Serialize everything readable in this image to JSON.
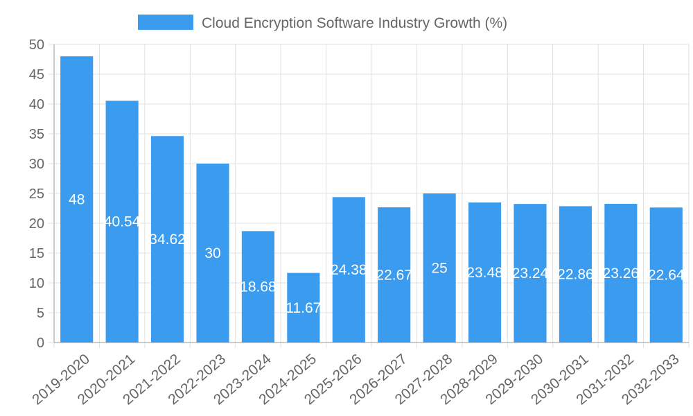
{
  "chart_data": {
    "type": "bar",
    "title": "",
    "xlabel": "",
    "ylabel": "",
    "legend": [
      {
        "name": "Cloud Encryption Software Industry Growth (%)",
        "color": "#3a9bef"
      }
    ],
    "legend_position": "top-center",
    "grid": true,
    "ylim": [
      0,
      50
    ],
    "yticks": [
      0,
      5,
      10,
      15,
      20,
      25,
      30,
      35,
      40,
      45,
      50
    ],
    "categories": [
      "2019-2020",
      "2020-2021",
      "2021-2022",
      "2022-2023",
      "2023-2024",
      "2024-2025",
      "2025-2026",
      "2026-2027",
      "2027-2028",
      "2028-2029",
      "2029-2030",
      "2030-2031",
      "2031-2032",
      "2032-2033"
    ],
    "series": [
      {
        "name": "Cloud Encryption Software Industry Growth (%)",
        "values": [
          48,
          40.54,
          34.62,
          30,
          18.68,
          11.67,
          24.38,
          22.67,
          25,
          23.48,
          23.24,
          22.86,
          23.26,
          22.64
        ],
        "labels": [
          "48",
          "40.54",
          "34.62",
          "30",
          "18.68",
          "11.67",
          "24.38",
          "22.67",
          "25",
          "23.48",
          "23.24",
          "22.86",
          "23.26",
          "22.64"
        ]
      }
    ],
    "colors": {
      "bar": "#3a9bef",
      "grid": "#e0e0e0",
      "axis": "#999999",
      "text": "#666666",
      "label": "#ffffff"
    }
  }
}
